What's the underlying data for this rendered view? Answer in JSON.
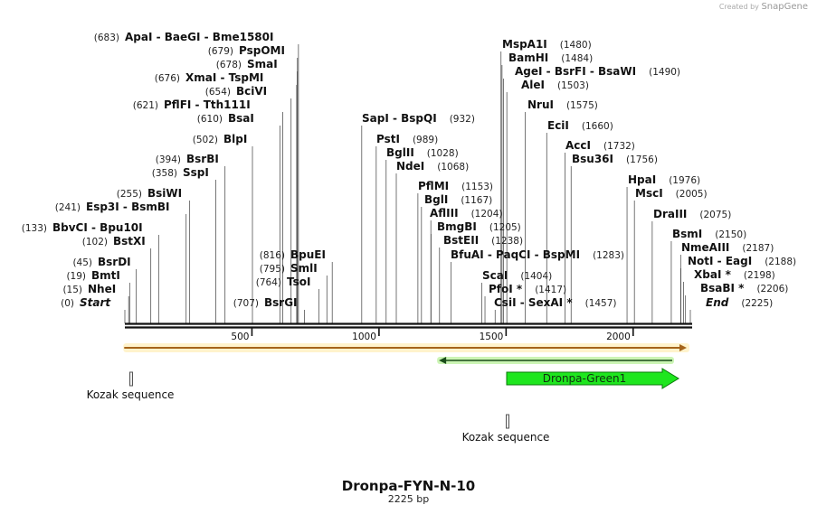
{
  "watermark": {
    "prefix": "Created by",
    "brand": "SnapGene"
  },
  "plasmid": {
    "name": "Dronpa-FYN-N-10",
    "length_label": "2225 bp",
    "length": 2225
  },
  "ruler_ticks": [
    {
      "pos": 500,
      "label": "500"
    },
    {
      "pos": 1000,
      "label": "1000"
    },
    {
      "pos": 1500,
      "label": "1500"
    },
    {
      "pos": 2000,
      "label": "2000"
    }
  ],
  "sites": [
    {
      "name": "Start",
      "pos": 0,
      "pos_label": "(0)",
      "italic": true
    },
    {
      "name": "NheI",
      "pos": 15,
      "pos_label": "(15)"
    },
    {
      "name": "BmtI",
      "pos": 19,
      "pos_label": "(19)"
    },
    {
      "name": "BsrDI",
      "pos": 45,
      "pos_label": "(45)"
    },
    {
      "name": "BstXI",
      "pos": 102,
      "pos_label": "(102)"
    },
    {
      "name": "BbvCI  -  Bpu10I",
      "pos": 133,
      "pos_label": "(133)"
    },
    {
      "name": "Esp3I  -  BsmBI",
      "pos": 241,
      "pos_label": "(241)"
    },
    {
      "name": "BsiWI",
      "pos": 255,
      "pos_label": "(255)"
    },
    {
      "name": "SspI",
      "pos": 358,
      "pos_label": "(358)"
    },
    {
      "name": "BsrBI",
      "pos": 394,
      "pos_label": "(394)"
    },
    {
      "name": "BlpI",
      "pos": 502,
      "pos_label": "(502)"
    },
    {
      "name": "BsaI",
      "pos": 610,
      "pos_label": "(610)"
    },
    {
      "name": "PflFI  -  Tth111I",
      "pos": 621,
      "pos_label": "(621)"
    },
    {
      "name": "BciVI",
      "pos": 654,
      "pos_label": "(654)"
    },
    {
      "name": "XmaI  -  TspMI",
      "pos": 676,
      "pos_label": "(676)"
    },
    {
      "name": "SmaI",
      "pos": 678,
      "pos_label": "(678)"
    },
    {
      "name": "PspOMI",
      "pos": 679,
      "pos_label": "(679)"
    },
    {
      "name": "ApaI  -  BaeGI  -  Bme1580I",
      "pos": 683,
      "pos_label": "(683)"
    },
    {
      "name": "BsrGI",
      "pos": 707,
      "pos_label": "(707)"
    },
    {
      "name": "TsoI",
      "pos": 764,
      "pos_label": "(764)"
    },
    {
      "name": "SmlI",
      "pos": 795,
      "pos_label": "(795)"
    },
    {
      "name": "BpuEI",
      "pos": 816,
      "pos_label": "(816)"
    },
    {
      "name": "SapI  -  BspQI",
      "pos": 932,
      "pos_label": "(932)"
    },
    {
      "name": "PstI",
      "pos": 989,
      "pos_label": "(989)"
    },
    {
      "name": "BglII",
      "pos": 1028,
      "pos_label": "(1028)"
    },
    {
      "name": "NdeI",
      "pos": 1068,
      "pos_label": "(1068)"
    },
    {
      "name": "PflMI",
      "pos": 1153,
      "pos_label": "(1153)"
    },
    {
      "name": "BglI",
      "pos": 1167,
      "pos_label": "(1167)"
    },
    {
      "name": "AflIII",
      "pos": 1204,
      "pos_label": "(1204)"
    },
    {
      "name": "BmgBI",
      "pos": 1205,
      "pos_label": "(1205)"
    },
    {
      "name": "BstEII",
      "pos": 1238,
      "pos_label": "(1238)"
    },
    {
      "name": "BfuAI  -  PaqCI  -  BspMI",
      "pos": 1283,
      "pos_label": "(1283)"
    },
    {
      "name": "ScaI",
      "pos": 1404,
      "pos_label": "(1404)"
    },
    {
      "name": "PfoI *",
      "pos": 1417,
      "pos_label": "(1417)"
    },
    {
      "name": "CsiI  -  SexAI *",
      "pos": 1457,
      "pos_label": "(1457)"
    },
    {
      "name": "MspA1I",
      "pos": 1480,
      "pos_label": "(1480)"
    },
    {
      "name": "BamHI",
      "pos": 1484,
      "pos_label": "(1484)"
    },
    {
      "name": "AgeI  -  BsrFI  -  BsaWI",
      "pos": 1490,
      "pos_label": "(1490)"
    },
    {
      "name": "AleI",
      "pos": 1503,
      "pos_label": "(1503)"
    },
    {
      "name": "NruI",
      "pos": 1575,
      "pos_label": "(1575)"
    },
    {
      "name": "EciI",
      "pos": 1660,
      "pos_label": "(1660)"
    },
    {
      "name": "AccI",
      "pos": 1732,
      "pos_label": "(1732)"
    },
    {
      "name": "Bsu36I",
      "pos": 1756,
      "pos_label": "(1756)"
    },
    {
      "name": "HpaI",
      "pos": 1976,
      "pos_label": "(1976)"
    },
    {
      "name": "MscI",
      "pos": 2005,
      "pos_label": "(2005)"
    },
    {
      "name": "DraIII",
      "pos": 2075,
      "pos_label": "(2075)"
    },
    {
      "name": "BsmI",
      "pos": 2150,
      "pos_label": "(2150)"
    },
    {
      "name": "NmeAIII",
      "pos": 2187,
      "pos_label": "(2187)"
    },
    {
      "name": "NotI  -  EagI",
      "pos": 2188,
      "pos_label": "(2188)"
    },
    {
      "name": "XbaI *",
      "pos": 2198,
      "pos_label": "(2198)"
    },
    {
      "name": "BsaBI *",
      "pos": 2206,
      "pos_label": "(2206)"
    },
    {
      "name": "End",
      "pos": 2225,
      "pos_label": "(2225)",
      "italic": true
    }
  ],
  "features": [
    {
      "name": "orange-track",
      "start": 1,
      "end": 2225,
      "direction": "forward",
      "color": "#f2a630",
      "label": ""
    },
    {
      "name": "green-track",
      "start": 1250,
      "end": 2225,
      "direction": "reverse",
      "color": "#2a8a2a",
      "label": ""
    },
    {
      "name": "Dronpa-Green1",
      "start": 1505,
      "end": 2225,
      "direction": "forward",
      "color": "#1ee61e",
      "label": "Dronpa-Green1"
    },
    {
      "name": "kozak-1",
      "start": 15,
      "end": 25,
      "label": "Kozak sequence",
      "color": "#888888"
    },
    {
      "name": "kozak-2",
      "start": 1505,
      "end": 1515,
      "label": "Kozak sequence",
      "color": "#888888"
    }
  ],
  "colors": {
    "backbone": "#111111",
    "site_line": "#555555",
    "text": "#111111",
    "pos_text": "#222222"
  }
}
